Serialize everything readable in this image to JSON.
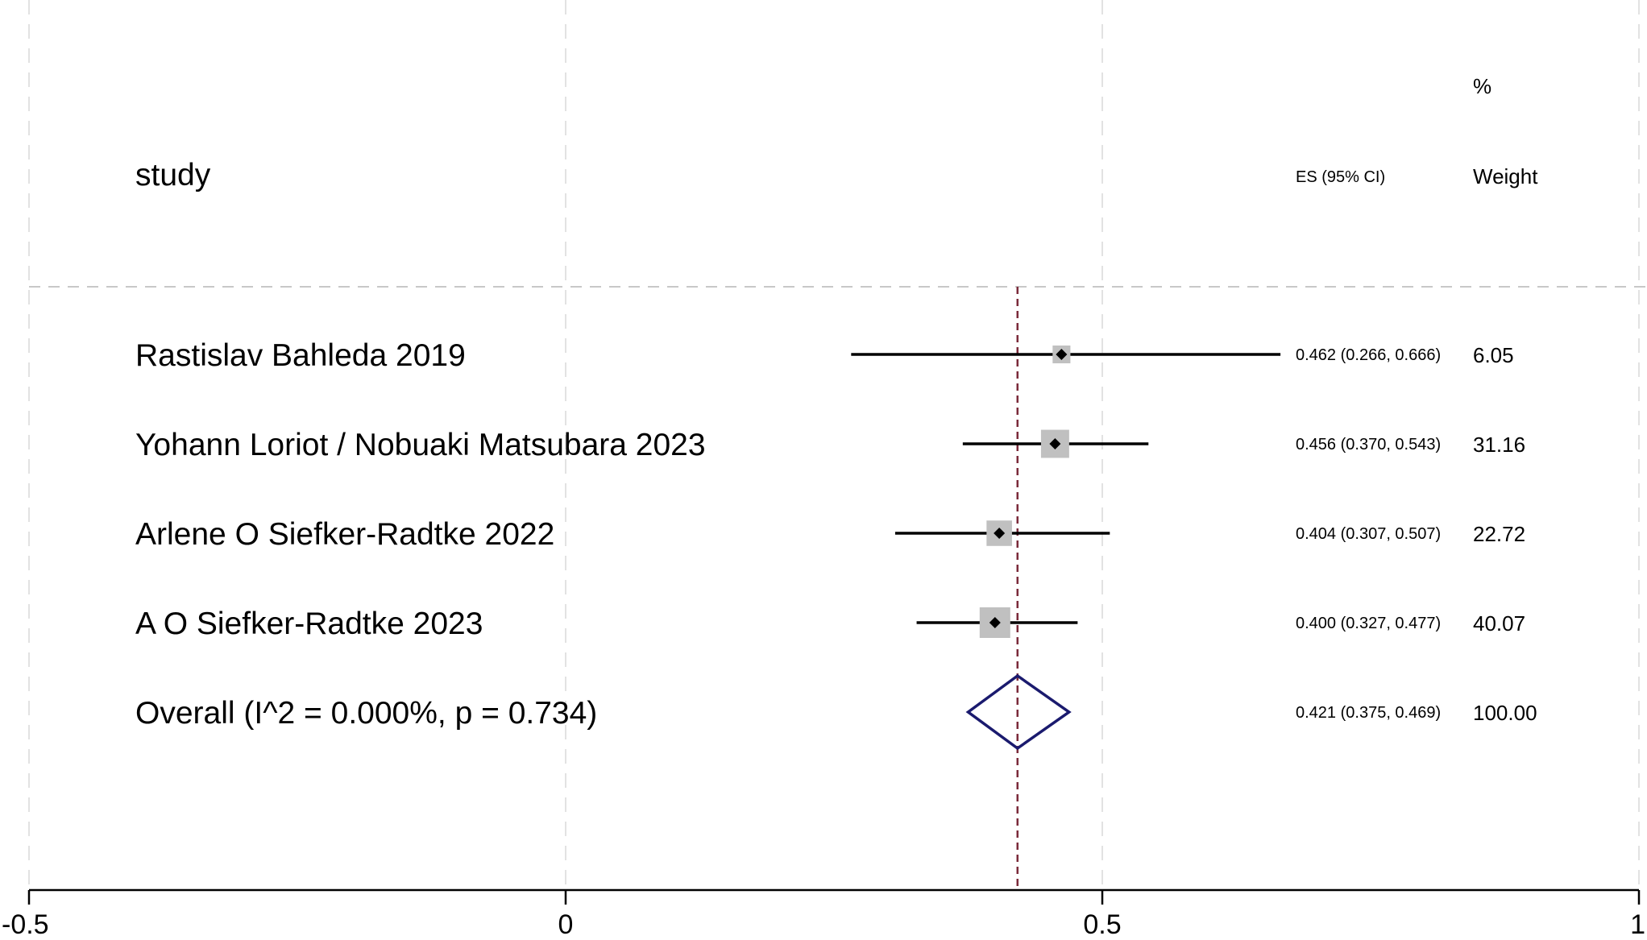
{
  "chart_data": {
    "type": "forest",
    "xlim": [
      -0.5,
      1
    ],
    "x_ticks": [
      -0.5,
      0,
      0.5,
      1
    ],
    "x_tick_labels": [
      "-0.5",
      "0",
      "0.5",
      "1"
    ],
    "header": {
      "study": "study",
      "es": "ES (95% CI)",
      "weight_top": "%",
      "weight": "Weight"
    },
    "studies": [
      {
        "label": "Rastislav Bahleda 2019",
        "es": 0.462,
        "lo": 0.266,
        "hi": 0.666,
        "ci_text": "0.462 (0.266, 0.666)",
        "weight": 6.05,
        "weight_text": "6.05"
      },
      {
        "label": "Yohann Loriot / Nobuaki Matsubara 2023",
        "es": 0.456,
        "lo": 0.37,
        "hi": 0.543,
        "ci_text": "0.456 (0.370, 0.543)",
        "weight": 31.16,
        "weight_text": "31.16"
      },
      {
        "label": "Arlene O Siefker-Radtke 2022",
        "es": 0.404,
        "lo": 0.307,
        "hi": 0.507,
        "ci_text": "0.404 (0.307, 0.507)",
        "weight": 22.72,
        "weight_text": "22.72"
      },
      {
        "label": "A O Siefker-Radtke 2023",
        "es": 0.4,
        "lo": 0.327,
        "hi": 0.477,
        "ci_text": "0.400 (0.327, 0.477)",
        "weight": 40.07,
        "weight_text": "40.07"
      }
    ],
    "overall": {
      "label": "Overall  (I^2 = 0.000%, p = 0.734)",
      "es": 0.421,
      "lo": 0.375,
      "hi": 0.469,
      "ci_text": "0.421 (0.375, 0.469)",
      "weight_text": "100.00"
    },
    "reference_line": 0.421,
    "colors": {
      "box": "#c0c0c0",
      "ci_line": "#000000",
      "diamond": "#1a1a6e",
      "reference_line": "#7a2a3a",
      "grid": "#e2e2e2",
      "separator": "#c8c8c8"
    }
  }
}
